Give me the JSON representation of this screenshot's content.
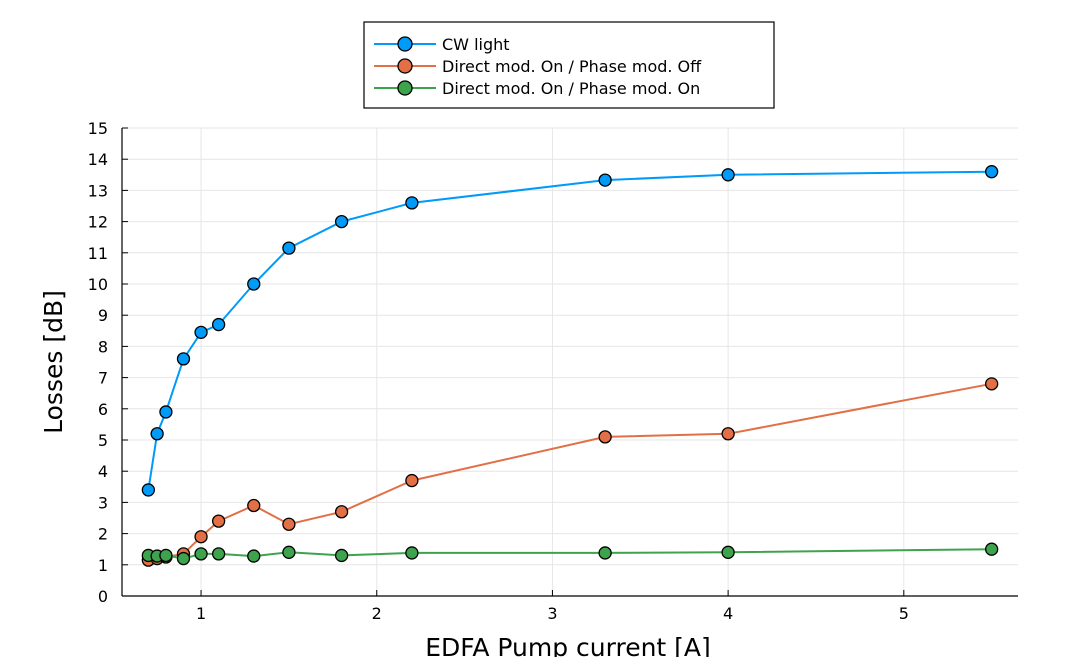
{
  "chart_data": {
    "type": "line",
    "title": "",
    "xlabel": "EDFA Pump current [A]",
    "ylabel": "Losses [dB]",
    "xlim": [
      0.55,
      5.65
    ],
    "ylim": [
      0,
      15
    ],
    "xticks": [
      1,
      2,
      3,
      4,
      5
    ],
    "yticks": [
      0,
      1,
      2,
      3,
      4,
      5,
      6,
      7,
      8,
      9,
      10,
      11,
      12,
      13,
      14,
      15
    ],
    "grid": true,
    "legend_position": "top-center",
    "series": [
      {
        "name": "CW light",
        "color": "#009af9",
        "x": [
          0.7,
          0.75,
          0.8,
          0.9,
          1.0,
          1.1,
          1.3,
          1.5,
          1.8,
          2.2,
          3.3,
          4.0,
          5.5
        ],
        "y": [
          3.4,
          5.2,
          5.9,
          7.6,
          8.45,
          8.7,
          10.0,
          11.15,
          12.0,
          12.6,
          13.33,
          13.5,
          13.6
        ]
      },
      {
        "name": "Direct mod. On / Phase mod. Off",
        "color": "#e26f46",
        "x": [
          0.7,
          0.75,
          0.8,
          0.9,
          1.0,
          1.1,
          1.3,
          1.5,
          1.8,
          2.2,
          3.3,
          4.0,
          5.5
        ],
        "y": [
          1.15,
          1.2,
          1.25,
          1.35,
          1.9,
          2.4,
          2.9,
          2.3,
          2.7,
          3.7,
          5.1,
          5.2,
          6.8
        ]
      },
      {
        "name": "Direct mod. On / Phase mod. On",
        "color": "#3da44d",
        "x": [
          0.7,
          0.75,
          0.8,
          0.9,
          1.0,
          1.1,
          1.3,
          1.5,
          1.8,
          2.2,
          3.3,
          4.0,
          5.5
        ],
        "y": [
          1.3,
          1.28,
          1.3,
          1.2,
          1.35,
          1.35,
          1.28,
          1.4,
          1.3,
          1.38,
          1.38,
          1.4,
          1.5
        ]
      }
    ]
  }
}
